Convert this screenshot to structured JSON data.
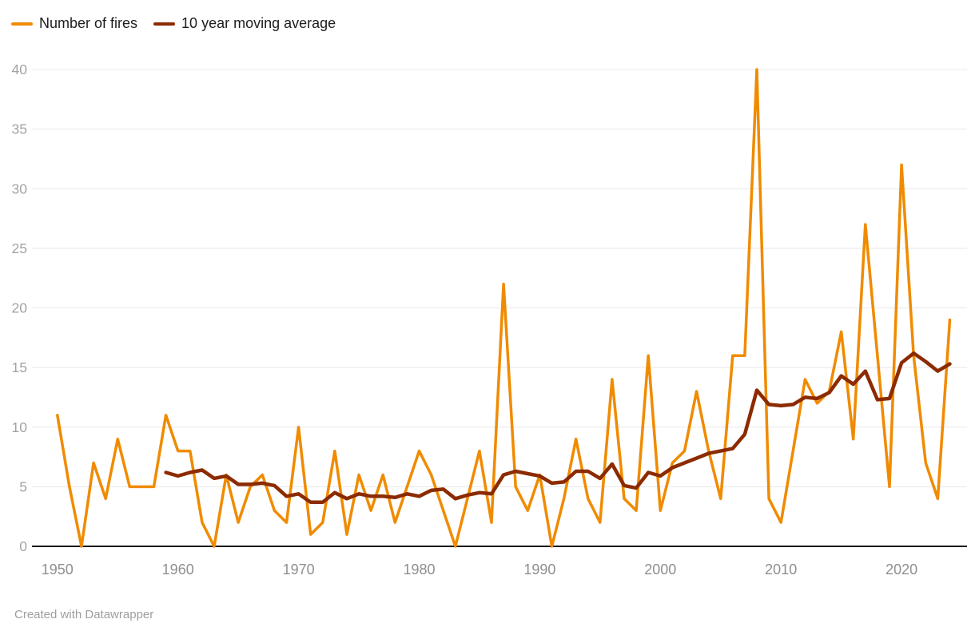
{
  "legend": {
    "items": [
      {
        "label": "Number of fires",
        "color": "#F08B00"
      },
      {
        "label": "10 year moving average",
        "color": "#8C2B00"
      }
    ]
  },
  "footer": {
    "text": "Created with Datawrapper"
  },
  "colors": {
    "background": "#FFFFFF",
    "grid": "#E8E8E8",
    "zero_axis": "#141414",
    "y_tick_text": "#A3A3A3",
    "x_tick_text": "#8F8F8F",
    "legend_text": "#1D1D1D",
    "footer_text": "#9E9E9E",
    "fires_line": "#F08B00",
    "moving_average_line": "#8C2B00"
  },
  "chart_data": {
    "type": "line",
    "x": [
      1950,
      1951,
      1952,
      1953,
      1954,
      1955,
      1956,
      1957,
      1958,
      1959,
      1960,
      1961,
      1962,
      1963,
      1964,
      1965,
      1966,
      1967,
      1968,
      1969,
      1970,
      1971,
      1972,
      1973,
      1974,
      1975,
      1976,
      1977,
      1978,
      1979,
      1980,
      1981,
      1982,
      1983,
      1984,
      1985,
      1986,
      1987,
      1988,
      1989,
      1990,
      1991,
      1992,
      1993,
      1994,
      1995,
      1996,
      1997,
      1998,
      1999,
      2000,
      2001,
      2002,
      2003,
      2004,
      2005,
      2006,
      2007,
      2008,
      2009,
      2010,
      2011,
      2012,
      2013,
      2014,
      2015,
      2016,
      2017,
      2018,
      2019,
      2020,
      2021,
      2022,
      2023,
      2024
    ],
    "series": [
      {
        "name": "Number of fires",
        "color": "#F08B00",
        "values": [
          11,
          5,
          0,
          7,
          4,
          9,
          5,
          5,
          5,
          11,
          8,
          8,
          2,
          0,
          6,
          2,
          5,
          6,
          3,
          2,
          10,
          1,
          2,
          8,
          1,
          6,
          3,
          6,
          2,
          5,
          8,
          6,
          3,
          0,
          4,
          8,
          2,
          22,
          5,
          3,
          6,
          0,
          4,
          9,
          4,
          2,
          14,
          4,
          3,
          16,
          3,
          7,
          8,
          13,
          8,
          4,
          16,
          16,
          40,
          4,
          2,
          8,
          14,
          12,
          13,
          18,
          9,
          27,
          16,
          5,
          32,
          16,
          7,
          4,
          19
        ]
      },
      {
        "name": "10 year moving average",
        "color": "#8C2B00",
        "values": [
          null,
          null,
          null,
          null,
          null,
          null,
          null,
          null,
          null,
          6.2,
          5.9,
          6.2,
          6.4,
          5.7,
          5.9,
          5.2,
          5.2,
          5.3,
          5.1,
          4.2,
          4.4,
          3.7,
          3.7,
          4.5,
          4.0,
          4.4,
          4.2,
          4.2,
          4.1,
          4.4,
          4.2,
          4.7,
          4.8,
          4.0,
          4.3,
          4.5,
          4.4,
          6.0,
          6.3,
          6.1,
          5.9,
          5.3,
          5.4,
          6.3,
          6.3,
          5.7,
          6.9,
          5.1,
          4.9,
          6.2,
          5.9,
          6.6,
          7.0,
          7.4,
          7.8,
          8.0,
          8.2,
          9.4,
          13.1,
          11.9,
          11.8,
          11.9,
          12.5,
          12.4,
          12.9,
          14.3,
          13.6,
          14.7,
          12.3,
          12.4,
          15.4,
          16.2,
          15.5,
          14.7,
          15.3
        ]
      }
    ],
    "xlabel": "",
    "ylabel": "",
    "ylim": [
      0,
      40
    ],
    "yticks": [
      0,
      5,
      10,
      15,
      20,
      25,
      30,
      35,
      40
    ],
    "xticks": [
      1950,
      1960,
      1970,
      1980,
      1990,
      2000,
      2010,
      2020
    ],
    "grid": "horizontal",
    "legend_position": "top-left"
  }
}
